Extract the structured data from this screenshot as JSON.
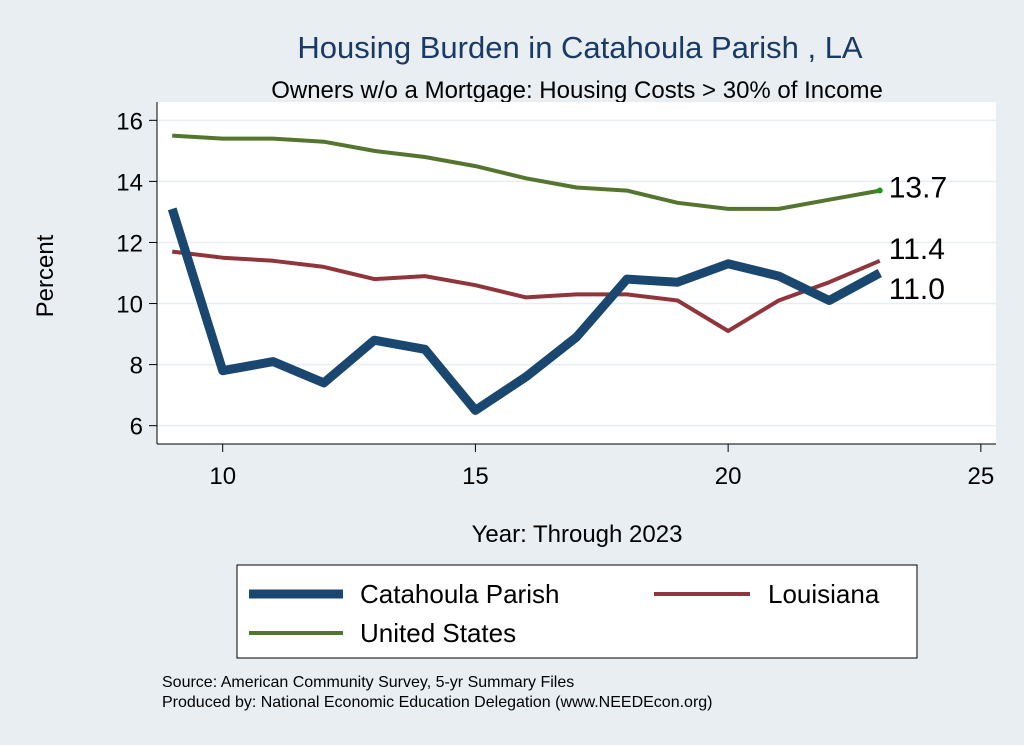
{
  "chart_data": {
    "type": "line",
    "title": "Housing Burden in Catahoula Parish , LA",
    "subtitle": "Owners w/o a Mortgage: Housing Costs > 30% of Income",
    "xlabel": "Year: Through 2023",
    "ylabel": "Percent",
    "xlim": [
      8.7,
      25.3
    ],
    "ylim": [
      5.4,
      16.6
    ],
    "x_ticks": [
      10,
      15,
      20,
      25
    ],
    "y_ticks": [
      6,
      8,
      10,
      12,
      14,
      16
    ],
    "x": [
      9,
      10,
      11,
      12,
      13,
      14,
      15,
      16,
      17,
      18,
      19,
      20,
      21,
      22,
      23
    ],
    "series": [
      {
        "name": "Catahoula Parish",
        "color": "#1a476f",
        "values": [
          13.1,
          7.8,
          8.1,
          7.4,
          8.8,
          8.5,
          6.5,
          7.6,
          8.9,
          10.8,
          10.7,
          11.3,
          10.9,
          10.1,
          11.0
        ],
        "end_label": "11.0"
      },
      {
        "name": "Louisiana",
        "color": "#90353b",
        "values": [
          11.7,
          11.5,
          11.4,
          11.2,
          10.8,
          10.9,
          10.6,
          10.2,
          10.3,
          10.3,
          10.1,
          9.1,
          10.1,
          10.7,
          11.4
        ],
        "end_label": "11.4"
      },
      {
        "name": "United States",
        "color": "#55752f",
        "values": [
          15.5,
          15.4,
          15.4,
          15.3,
          15.0,
          14.8,
          14.5,
          14.1,
          13.8,
          13.7,
          13.3,
          13.1,
          13.1,
          13.4,
          13.7
        ],
        "end_label": "13.7"
      }
    ],
    "legend": {
      "placement": "bottom",
      "entries": [
        "Catahoula Parish",
        "Louisiana",
        "United States"
      ]
    },
    "grid": true
  },
  "source_note": "Source: American Community Survey, 5-yr Summary Files",
  "produced_note": "Produced by: National Economic Education Delegation (www.NEEDEcon.org)"
}
